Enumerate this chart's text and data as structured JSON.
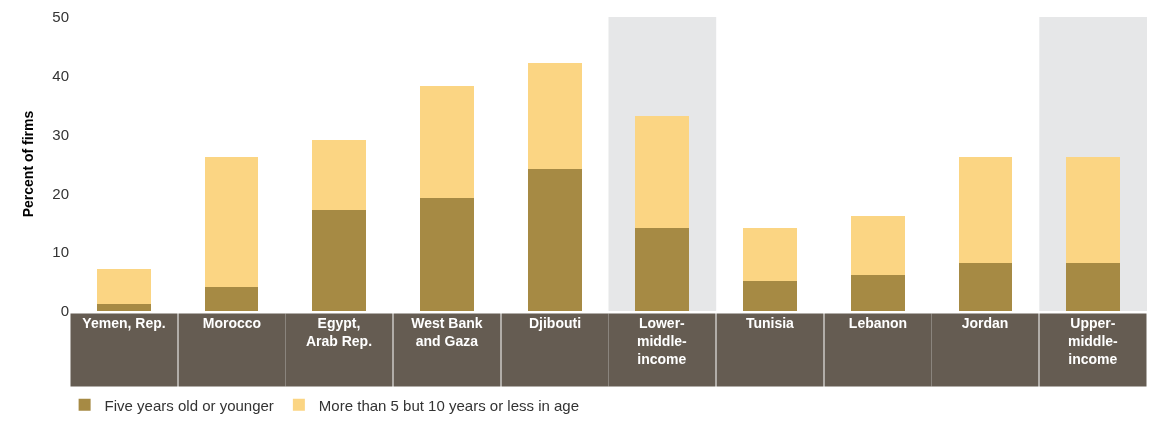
{
  "chart_data": {
    "type": "bar",
    "stacked": true,
    "ylabel": "Percent of firms",
    "categories": [
      "Yemen, Rep.",
      "Morocco",
      "Egypt,\nArab Rep.",
      "West Bank\nand Gaza",
      "Djibouti",
      "Lower-\nmiddle-\nincome",
      "Tunisia",
      "Lebanon",
      "Jordan",
      "Upper-\nmiddle-\nincome"
    ],
    "series": [
      {
        "name": "Five years old or younger",
        "color": "#a68a44",
        "values": [
          1.2,
          4.1,
          17.2,
          19.2,
          24.2,
          14.2,
          5.1,
          6.1,
          8.1,
          8.1
        ]
      },
      {
        "name": "More than 5 but 10 years or less in age",
        "color": "#fbd583",
        "values": [
          5.9,
          22.1,
          11.8,
          19.0,
          18.0,
          18.9,
          9.1,
          10.1,
          18.1,
          18.1
        ]
      }
    ],
    "ylim": [
      0,
      50
    ],
    "yticks": [
      0,
      10,
      20,
      30,
      40,
      50
    ],
    "grid": false,
    "legend": "bottom",
    "bands": [
      {
        "axis": "x",
        "from": "Lower-\nmiddle-\nincome",
        "to": "Lower-\nmiddle-\nincome",
        "color": "#e6e7e8"
      },
      {
        "axis": "x",
        "from": "Upper-\nmiddle-\nincome",
        "to": "Upper-\nmiddle-\nincome",
        "color": "#e6e7e8"
      }
    ]
  }
}
